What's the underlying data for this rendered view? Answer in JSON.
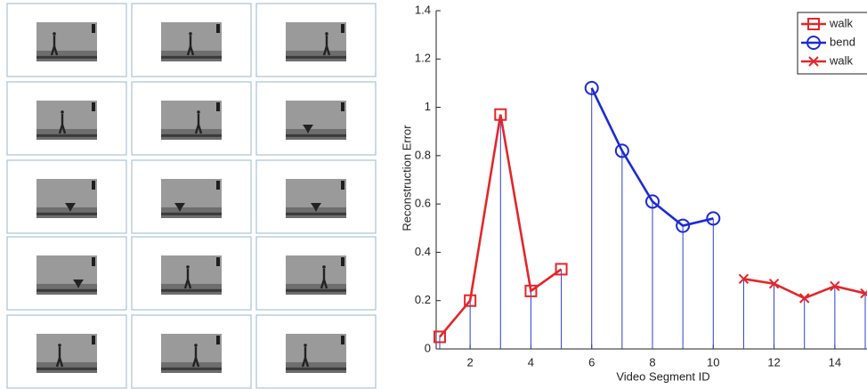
{
  "chart_data": {
    "type": "line",
    "x": [
      1,
      2,
      3,
      4,
      5,
      6,
      7,
      8,
      9,
      10,
      11,
      12,
      13,
      14,
      15
    ],
    "series": [
      {
        "name": "walk",
        "color": "#e3262b",
        "marker": "square",
        "values": [
          0.05,
          0.2,
          0.97,
          0.24,
          0.33,
          null,
          null,
          null,
          null,
          null,
          null,
          null,
          null,
          null,
          null
        ]
      },
      {
        "name": "bend",
        "color": "#1c2bd4",
        "marker": "circle",
        "values": [
          null,
          null,
          null,
          null,
          null,
          1.08,
          0.82,
          0.61,
          0.51,
          0.54,
          null,
          null,
          null,
          null,
          null
        ]
      },
      {
        "name": "walk",
        "color": "#e3262b",
        "marker": "x",
        "values": [
          null,
          null,
          null,
          null,
          null,
          null,
          null,
          null,
          null,
          null,
          0.29,
          0.27,
          0.21,
          0.26,
          0.23
        ]
      }
    ],
    "stem_color": "#2b3fd0",
    "xlabel": "Video Segment ID",
    "ylabel": "Reconstruction Error",
    "xlim": [
      1,
      15
    ],
    "xticks": [
      2,
      4,
      6,
      8,
      10,
      12,
      14
    ],
    "ylim": [
      0,
      1.4
    ],
    "yticks": [
      0,
      0.2,
      0.4,
      0.6,
      0.8,
      1,
      1.2,
      1.4
    ],
    "legend": "northeast",
    "grid": false
  }
}
